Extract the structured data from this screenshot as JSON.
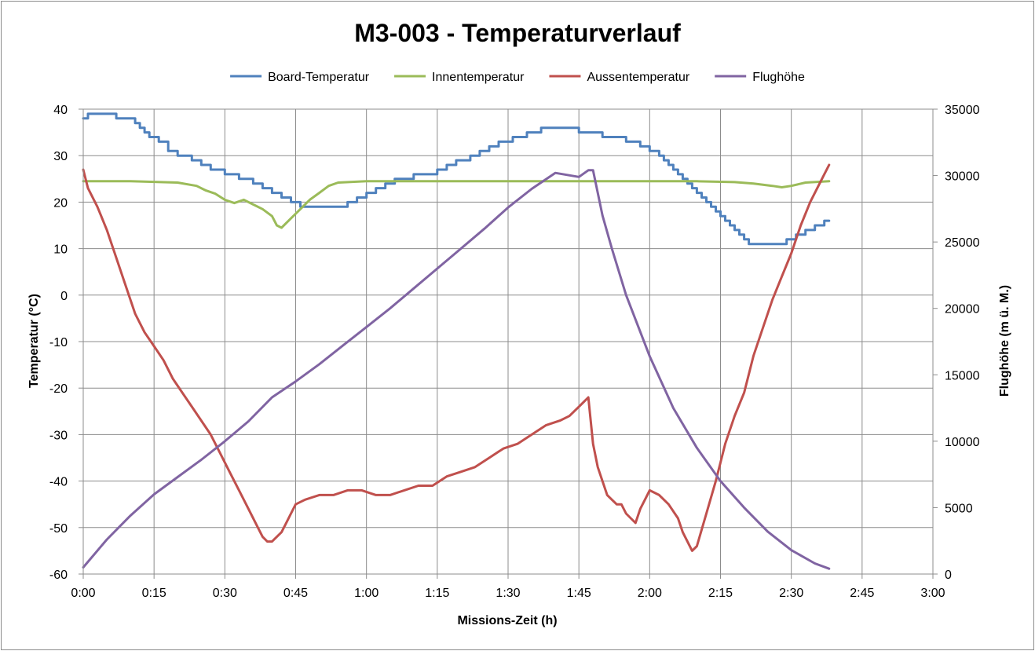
{
  "chart_data": {
    "type": "line",
    "title": "M3-003 - Temperaturverlauf",
    "xlabel": "Missions-Zeit  (h)",
    "ylabel": "Temperatur  (°C)",
    "y2label": "Flughöhe (m ü. M.)",
    "xlim": [
      0,
      180
    ],
    "ylim": [
      -60,
      40
    ],
    "y2lim": [
      0,
      35000
    ],
    "x_tick_labels": [
      "0:00",
      "0:15",
      "0:30",
      "0:45",
      "1:00",
      "1:15",
      "1:30",
      "1:45",
      "2:00",
      "2:15",
      "2:30",
      "2:45",
      "3:00"
    ],
    "y_tick_labels": [
      "40",
      "30",
      "20",
      "10",
      "0",
      "-10",
      "-20",
      "-30",
      "-40",
      "-50",
      "-60"
    ],
    "y2_tick_labels": [
      "35000",
      "30000",
      "25000",
      "20000",
      "15000",
      "10000",
      "5000",
      "0"
    ],
    "grid": true,
    "legend_position": "top",
    "x_unit_note": "minutes",
    "series": [
      {
        "name": "Board-Temperatur",
        "axis": "left",
        "color": "#4f81bd",
        "step": true,
        "x": [
          0,
          1,
          5,
          7,
          9,
          11,
          12,
          13,
          14,
          16,
          18,
          20,
          23,
          25,
          27,
          30,
          33,
          36,
          38,
          40,
          42,
          44,
          46,
          51,
          56,
          58,
          60,
          62,
          64,
          66,
          70,
          75,
          77,
          79,
          82,
          84,
          86,
          88,
          91,
          94,
          97,
          101,
          105,
          110,
          115,
          118,
          120,
          122,
          123,
          124,
          125,
          126,
          127,
          128,
          129,
          130,
          131,
          132,
          133,
          134,
          135,
          136,
          137,
          138,
          139,
          140,
          141,
          142,
          143,
          145,
          147,
          148,
          149,
          150,
          151,
          152,
          153,
          154,
          155,
          156,
          157,
          158
        ],
        "values": [
          38,
          39,
          39,
          38,
          38,
          37,
          36,
          35,
          34,
          33,
          31,
          30,
          29,
          28,
          27,
          26,
          25,
          24,
          23,
          22,
          21,
          20,
          19,
          19,
          20,
          21,
          22,
          23,
          24,
          25,
          26,
          27,
          28,
          29,
          30,
          31,
          32,
          33,
          34,
          35,
          36,
          36,
          35,
          34,
          33,
          32,
          31,
          30,
          29,
          28,
          27,
          26,
          25,
          24,
          23,
          22,
          21,
          20,
          19,
          18,
          17,
          16,
          15,
          14,
          13,
          12,
          11,
          11,
          11,
          11,
          11,
          11,
          12,
          12,
          13,
          13,
          14,
          14,
          15,
          15,
          16,
          16
        ]
      },
      {
        "name": "Innentemperatur",
        "axis": "left",
        "color": "#9bbb59",
        "step": false,
        "x": [
          0,
          10,
          20,
          24,
          26,
          28,
          30,
          32,
          34,
          36,
          38,
          40,
          41,
          42,
          44,
          46,
          48,
          50,
          52,
          54,
          60,
          70,
          80,
          90,
          100,
          110,
          120,
          130,
          138,
          142,
          146,
          148,
          150,
          153,
          158
        ],
        "values": [
          24.5,
          24.5,
          24.2,
          23.5,
          22.5,
          21.8,
          20.5,
          19.8,
          20.5,
          19.5,
          18.5,
          17,
          15,
          14.5,
          16.5,
          18.5,
          20.5,
          22,
          23.5,
          24.2,
          24.5,
          24.5,
          24.5,
          24.5,
          24.5,
          24.5,
          24.5,
          24.5,
          24.3,
          24,
          23.5,
          23.2,
          23.5,
          24.2,
          24.5
        ]
      },
      {
        "name": "Aussentemperatur",
        "axis": "left",
        "color": "#c0504d",
        "step": false,
        "x": [
          0,
          1,
          3,
          5,
          7,
          9,
          11,
          13,
          15,
          17,
          19,
          21,
          23,
          25,
          27,
          29,
          31,
          33,
          35,
          37,
          38,
          39,
          40,
          41,
          42,
          43,
          44,
          45,
          47,
          50,
          53,
          56,
          59,
          62,
          65,
          68,
          71,
          74,
          77,
          80,
          83,
          86,
          89,
          92,
          95,
          98,
          101,
          103,
          105,
          106,
          107,
          108,
          109,
          110,
          111,
          112,
          113,
          114,
          115,
          116,
          117,
          118,
          119,
          120,
          122,
          124,
          126,
          127,
          128,
          129,
          130,
          132,
          134,
          136,
          138,
          140,
          142,
          144,
          146,
          148,
          150,
          152,
          154,
          156,
          157,
          158
        ],
        "values": [
          27,
          23,
          19,
          14,
          8,
          2,
          -4,
          -8,
          -11,
          -14,
          -18,
          -21,
          -24,
          -27,
          -30,
          -34,
          -38,
          -42,
          -46,
          -50,
          -52,
          -53,
          -53,
          -52,
          -51,
          -49,
          -47,
          -45,
          -44,
          -43,
          -43,
          -42,
          -42,
          -43,
          -43,
          -42,
          -41,
          -41,
          -39,
          -38,
          -37,
          -35,
          -33,
          -32,
          -30,
          -28,
          -27,
          -26,
          -24,
          -23,
          -22,
          -32,
          -37,
          -40,
          -43,
          -44,
          -45,
          -45,
          -47,
          -48,
          -49,
          -46,
          -44,
          -42,
          -43,
          -45,
          -48,
          -51,
          -53,
          -55,
          -54,
          -47,
          -40,
          -32,
          -26,
          -21,
          -13,
          -7,
          -1,
          4,
          9,
          15,
          20,
          24,
          26,
          28
        ]
      },
      {
        "name": "Flughöhe",
        "axis": "right",
        "color": "#8064a2",
        "step": false,
        "x": [
          0,
          5,
          10,
          15,
          20,
          25,
          30,
          35,
          40,
          45,
          50,
          55,
          60,
          65,
          70,
          75,
          80,
          85,
          90,
          95,
          100,
          105,
          107,
          108,
          110,
          112,
          115,
          120,
          125,
          130,
          135,
          140,
          145,
          150,
          155,
          158
        ],
        "values": [
          500,
          2600,
          4400,
          6000,
          7300,
          8600,
          10000,
          11500,
          13300,
          14500,
          15800,
          17200,
          18600,
          20000,
          21500,
          23000,
          24500,
          26000,
          27600,
          29000,
          30200,
          29900,
          30400,
          30400,
          27000,
          24500,
          21000,
          16400,
          12500,
          9500,
          7000,
          5000,
          3200,
          1800,
          800,
          400
        ]
      }
    ]
  }
}
